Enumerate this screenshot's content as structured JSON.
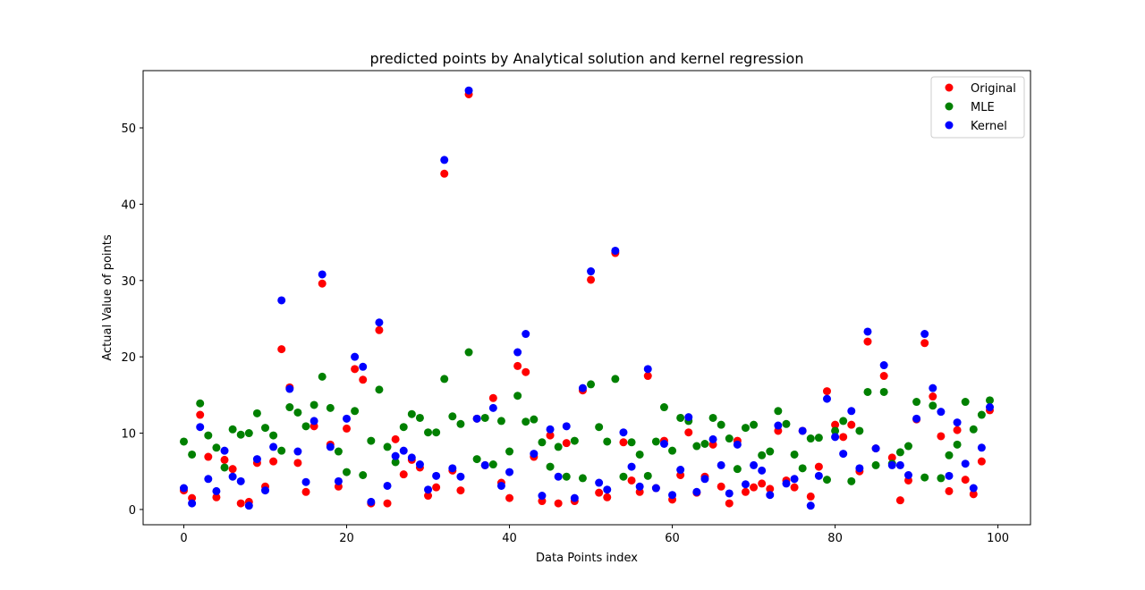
{
  "chart_data": {
    "type": "scatter",
    "title": "predicted points by Analytical solution and kernel regression",
    "xlabel": "Data Points index",
    "ylabel": "Actual Value of points",
    "xlim": [
      -5,
      104
    ],
    "ylim": [
      -2,
      57.5
    ],
    "xticks": [
      0,
      20,
      40,
      60,
      80,
      100
    ],
    "yticks": [
      0,
      10,
      20,
      30,
      40,
      50
    ],
    "grid": false,
    "legend_position": "top-right",
    "x": [
      0,
      1,
      2,
      3,
      4,
      5,
      6,
      7,
      8,
      9,
      10,
      11,
      12,
      13,
      14,
      15,
      16,
      17,
      18,
      19,
      20,
      21,
      22,
      23,
      24,
      25,
      26,
      27,
      28,
      29,
      30,
      31,
      32,
      33,
      34,
      35,
      36,
      37,
      38,
      39,
      40,
      41,
      42,
      43,
      44,
      45,
      46,
      47,
      48,
      49,
      50,
      51,
      52,
      53,
      54,
      55,
      56,
      57,
      58,
      59,
      60,
      61,
      62,
      63,
      64,
      65,
      66,
      67,
      68,
      69,
      70,
      71,
      72,
      73,
      74,
      75,
      76,
      77,
      78,
      79,
      80,
      81,
      82,
      83,
      84,
      85,
      86,
      87,
      88,
      89,
      90,
      91,
      92,
      93,
      94,
      95,
      96,
      97,
      98,
      99
    ],
    "series": [
      {
        "name": "Original",
        "color": "#ff0000",
        "values": [
          2.5,
          1.5,
          12.4,
          6.9,
          1.6,
          6.5,
          5.3,
          0.8,
          1.0,
          6.1,
          3.0,
          6.3,
          21.0,
          16.0,
          6.1,
          2.3,
          10.9,
          29.6,
          8.5,
          3.0,
          10.6,
          18.4,
          17.0,
          0.8,
          23.5,
          0.8,
          9.2,
          4.6,
          6.5,
          5.5,
          1.8,
          2.9,
          44.0,
          5.1,
          2.5,
          54.4,
          11.9,
          5.8,
          14.6,
          3.5,
          1.5,
          18.8,
          18.0,
          6.9,
          1.1,
          9.7,
          0.8,
          8.7,
          1.1,
          15.6,
          30.1,
          2.2,
          1.6,
          33.6,
          8.8,
          3.8,
          2.3,
          17.5,
          2.8,
          9.0,
          1.3,
          4.5,
          10.1,
          2.2,
          4.3,
          8.5,
          3.0,
          0.8,
          9.0,
          2.3,
          2.9,
          3.4,
          2.7,
          10.3,
          3.8,
          2.9,
          10.3,
          1.7,
          5.6,
          15.5,
          11.1,
          9.5,
          11.1,
          5.0,
          22.0,
          8.0,
          17.5,
          6.8,
          1.2,
          3.8,
          11.8,
          21.8,
          14.8,
          9.6,
          2.4,
          10.4,
          3.9,
          2.0,
          6.3,
          13.0
        ]
      },
      {
        "name": "MLE",
        "color": "#008000",
        "values": [
          8.9,
          7.2,
          13.9,
          9.7,
          8.1,
          5.5,
          10.5,
          9.8,
          10.0,
          12.6,
          10.7,
          9.7,
          7.7,
          13.4,
          12.7,
          10.9,
          13.7,
          17.4,
          13.3,
          7.6,
          4.9,
          12.9,
          4.5,
          9.0,
          15.7,
          8.2,
          6.2,
          10.8,
          12.5,
          12.0,
          10.1,
          10.1,
          17.1,
          12.2,
          11.2,
          20.6,
          6.6,
          12.0,
          5.9,
          11.6,
          7.6,
          14.9,
          11.5,
          11.8,
          8.8,
          5.6,
          8.2,
          4.3,
          9.0,
          4.1,
          16.4,
          10.8,
          8.9,
          17.1,
          4.3,
          8.8,
          7.2,
          4.4,
          8.9,
          13.4,
          7.7,
          12.0,
          11.6,
          8.3,
          8.6,
          12.0,
          11.1,
          9.3,
          5.3,
          10.7,
          11.1,
          7.1,
          7.6,
          12.9,
          11.2,
          7.2,
          5.4,
          9.3,
          9.4,
          3.9,
          10.3,
          11.6,
          3.7,
          10.3,
          15.4,
          5.8,
          15.4,
          6.0,
          7.5,
          8.3,
          14.1,
          4.2,
          13.6,
          4.1,
          7.1,
          8.5,
          14.1,
          10.5,
          12.4,
          14.3
        ]
      },
      {
        "name": "Kernel",
        "color": "#0000ff",
        "values": [
          2.8,
          0.8,
          10.8,
          4.0,
          2.4,
          7.7,
          4.3,
          3.7,
          0.5,
          6.6,
          2.5,
          8.2,
          27.4,
          15.8,
          7.6,
          3.6,
          11.6,
          30.8,
          8.2,
          3.7,
          11.9,
          20.0,
          18.7,
          1.0,
          24.5,
          3.1,
          7.0,
          7.7,
          6.8,
          5.9,
          2.6,
          4.4,
          45.8,
          5.4,
          4.3,
          54.9,
          11.9,
          5.8,
          13.3,
          3.1,
          4.9,
          20.6,
          23.0,
          7.3,
          1.8,
          10.5,
          4.3,
          10.9,
          1.5,
          15.9,
          31.2,
          3.5,
          2.6,
          33.9,
          10.1,
          5.6,
          3.0,
          18.4,
          2.8,
          8.6,
          1.9,
          5.2,
          12.1,
          2.3,
          4.0,
          9.2,
          5.8,
          2.1,
          8.5,
          3.3,
          5.8,
          5.1,
          1.9,
          11.0,
          3.4,
          4.0,
          10.3,
          0.5,
          4.4,
          14.5,
          9.5,
          7.3,
          12.9,
          5.4,
          23.3,
          8.0,
          18.9,
          5.8,
          5.8,
          4.5,
          11.9,
          23.0,
          15.9,
          12.8,
          4.4,
          11.4,
          6.0,
          2.8,
          8.1,
          13.4
        ]
      }
    ]
  }
}
